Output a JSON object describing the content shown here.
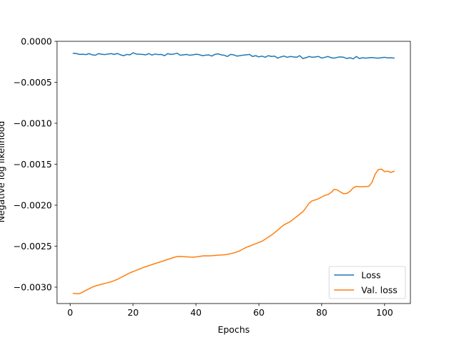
{
  "chart_data": {
    "type": "line",
    "title": "",
    "xlabel": "Epochs",
    "ylabel": "Negative log likelihood",
    "xlim": [
      -4.2,
      108.2
    ],
    "ylim": [
      -0.0032,
      0.0
    ],
    "xticks": [
      0,
      20,
      40,
      60,
      80,
      100
    ],
    "xtick_labels": [
      "0",
      "20",
      "40",
      "60",
      "80",
      "100"
    ],
    "yticks": [
      0.0,
      -0.0005,
      -0.001,
      -0.0015,
      -0.002,
      -0.0025,
      -0.003
    ],
    "ytick_labels": [
      "0.0000",
      "−0.0005",
      "−0.0010",
      "−0.0015",
      "−0.0020",
      "−0.0025",
      "−0.0030"
    ],
    "grid": false,
    "legend_position": "lower-right",
    "series": [
      {
        "name": "Loss",
        "color": "#1f77b4",
        "x": [
          1,
          2,
          3,
          4,
          5,
          6,
          7,
          8,
          9,
          10,
          11,
          12,
          13,
          14,
          15,
          16,
          17,
          18,
          19,
          20,
          21,
          22,
          23,
          24,
          25,
          26,
          27,
          28,
          29,
          30,
          31,
          32,
          33,
          34,
          35,
          36,
          37,
          38,
          39,
          40,
          41,
          42,
          43,
          44,
          45,
          46,
          47,
          48,
          49,
          50,
          51,
          52,
          53,
          54,
          55,
          56,
          57,
          58,
          59,
          60,
          61,
          62,
          63,
          64,
          65,
          66,
          67,
          68,
          69,
          70,
          71,
          72,
          73,
          74,
          75,
          76,
          77,
          78,
          79,
          80,
          81,
          82,
          83,
          84,
          85,
          86,
          87,
          88,
          89,
          90,
          91,
          92,
          93,
          94,
          95,
          96,
          97,
          98,
          99,
          100,
          101,
          102,
          103
        ],
        "y": [
          -0.000145,
          -0.00015,
          -0.00016,
          -0.000158,
          -0.000162,
          -0.00015,
          -0.000165,
          -0.00017,
          -0.00015,
          -0.000158,
          -0.000162,
          -0.000155,
          -0.00015,
          -0.00016,
          -0.000148,
          -0.000165,
          -0.000175,
          -0.00016,
          -0.000165,
          -0.00014,
          -0.000155,
          -0.000158,
          -0.00016,
          -0.000165,
          -0.00015,
          -0.000168,
          -0.000155,
          -0.000162,
          -0.00016,
          -0.000175,
          -0.00015,
          -0.00016,
          -0.000155,
          -0.000145,
          -0.00017,
          -0.000165,
          -0.00016,
          -0.00017,
          -0.000165,
          -0.000158,
          -0.000162,
          -0.000175,
          -0.00017,
          -0.000165,
          -0.00018,
          -0.00016,
          -0.000152,
          -0.000165,
          -0.00017,
          -0.000185,
          -0.00016,
          -0.000165,
          -0.00018,
          -0.000175,
          -0.000168,
          -0.000165,
          -0.00016,
          -0.000185,
          -0.000175,
          -0.00019,
          -0.00018,
          -0.000195,
          -0.000175,
          -0.000185,
          -0.00018,
          -0.000205,
          -0.00019,
          -0.00018,
          -0.000195,
          -0.000185,
          -0.00019,
          -0.000195,
          -0.000175,
          -0.00021,
          -0.0002,
          -0.000185,
          -0.000195,
          -0.00019,
          -0.000185,
          -0.000205,
          -0.000195,
          -0.000185,
          -0.0002,
          -0.000205,
          -0.000195,
          -0.00019,
          -0.000195,
          -0.00021,
          -0.0002,
          -0.000215,
          -0.000185,
          -0.00021,
          -0.0002,
          -0.000205,
          -0.0002,
          -0.000198,
          -0.000202,
          -0.000205,
          -0.0002,
          -0.000195,
          -0.000202,
          -0.0002,
          -0.000205
        ]
      },
      {
        "name": "Val. loss",
        "color": "#ff7f0e",
        "x": [
          1,
          2,
          3,
          4,
          5,
          6,
          7,
          8,
          9,
          10,
          11,
          12,
          13,
          14,
          15,
          16,
          17,
          18,
          19,
          20,
          21,
          22,
          23,
          24,
          25,
          26,
          27,
          28,
          29,
          30,
          31,
          32,
          33,
          34,
          35,
          36,
          37,
          38,
          39,
          40,
          41,
          42,
          43,
          44,
          45,
          46,
          47,
          48,
          49,
          50,
          51,
          52,
          53,
          54,
          55,
          56,
          57,
          58,
          59,
          60,
          61,
          62,
          63,
          64,
          65,
          66,
          67,
          68,
          69,
          70,
          71,
          72,
          73,
          74,
          75,
          76,
          77,
          78,
          79,
          80,
          81,
          82,
          83,
          84,
          85,
          86,
          87,
          88,
          89,
          90,
          91,
          92,
          93,
          94,
          95,
          96,
          97,
          98,
          99,
          100,
          101,
          102,
          103
        ],
        "y": [
          -0.003075,
          -0.00308,
          -0.003078,
          -0.00306,
          -0.00304,
          -0.00302,
          -0.003,
          -0.002985,
          -0.002975,
          -0.002965,
          -0.002955,
          -0.002945,
          -0.002935,
          -0.00292,
          -0.002905,
          -0.002885,
          -0.002865,
          -0.002845,
          -0.002825,
          -0.00281,
          -0.002795,
          -0.00278,
          -0.002765,
          -0.00275,
          -0.002738,
          -0.002725,
          -0.002712,
          -0.0027,
          -0.002688,
          -0.002675,
          -0.002662,
          -0.00265,
          -0.002637,
          -0.002627,
          -0.002625,
          -0.002627,
          -0.00263,
          -0.002633,
          -0.002634,
          -0.002632,
          -0.002626,
          -0.00262,
          -0.002617,
          -0.002618,
          -0.002616,
          -0.002613,
          -0.00261,
          -0.002608,
          -0.002605,
          -0.0026,
          -0.002592,
          -0.002583,
          -0.00257,
          -0.002555,
          -0.002535,
          -0.002515,
          -0.0025,
          -0.002485,
          -0.00247,
          -0.002455,
          -0.00244,
          -0.002415,
          -0.00239,
          -0.002365,
          -0.002335,
          -0.002305,
          -0.00227,
          -0.00224,
          -0.00222,
          -0.0022,
          -0.00217,
          -0.00214,
          -0.00211,
          -0.00208,
          -0.00203,
          -0.001975,
          -0.001945,
          -0.001935,
          -0.00192,
          -0.0019,
          -0.00188,
          -0.00187,
          -0.001845,
          -0.001805,
          -0.001815,
          -0.00184,
          -0.00186,
          -0.001855,
          -0.00183,
          -0.00179,
          -0.00177,
          -0.001775,
          -0.001775,
          -0.001772,
          -0.00177,
          -0.00172,
          -0.00162,
          -0.001565,
          -0.00156,
          -0.00159,
          -0.001585,
          -0.0016,
          -0.001585
        ]
      }
    ]
  }
}
